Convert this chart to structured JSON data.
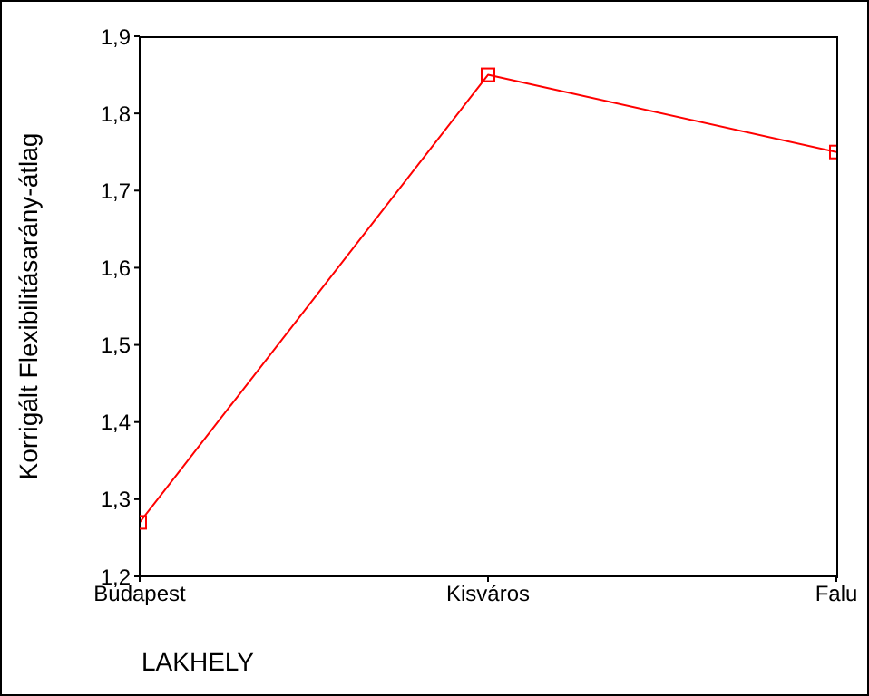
{
  "chart_data": {
    "type": "line",
    "xlabel": "LAKHELY",
    "ylabel": "Korrigált Flexibilitásarány-átlag",
    "categories": [
      "Budapest",
      "Kisváros",
      "Falu"
    ],
    "series": [
      {
        "color": "#ff0000",
        "values": [
          1.27,
          1.85,
          1.75
        ]
      }
    ],
    "ylim": [
      1.2,
      1.9
    ],
    "yticks": [
      {
        "value": 1.2,
        "label": "1,2"
      },
      {
        "value": 1.3,
        "label": "1,3"
      },
      {
        "value": 1.4,
        "label": "1,4"
      },
      {
        "value": 1.5,
        "label": "1,5"
      },
      {
        "value": 1.6,
        "label": "1,6"
      },
      {
        "value": 1.7,
        "label": "1,7"
      },
      {
        "value": 1.8,
        "label": "1,8"
      },
      {
        "value": 1.9,
        "label": "1,9"
      }
    ],
    "grid": false,
    "legend": false,
    "marker": "square",
    "line_style": "solid"
  }
}
